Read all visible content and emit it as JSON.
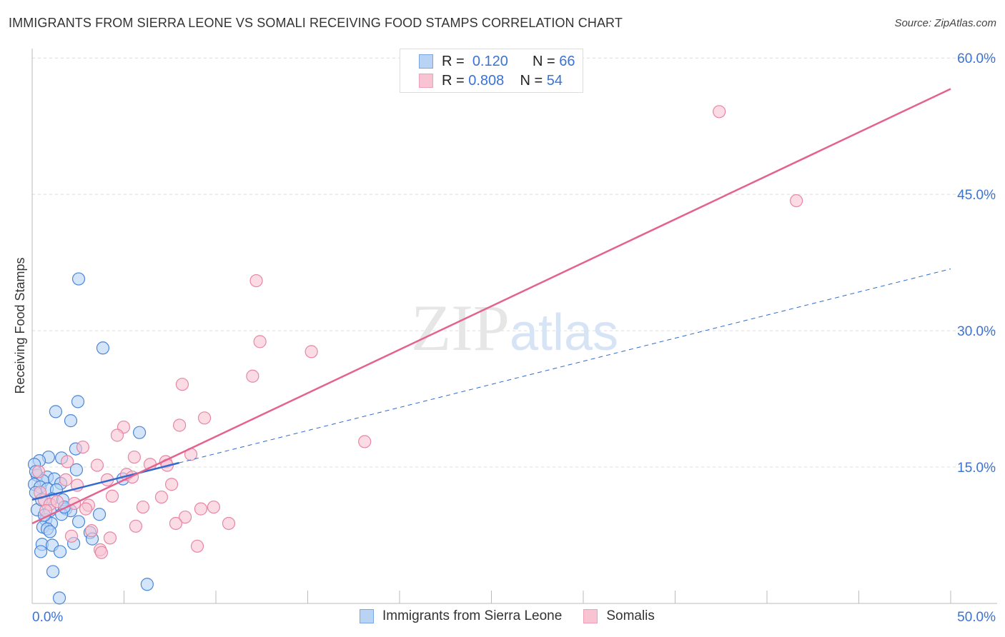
{
  "title": "IMMIGRANTS FROM SIERRA LEONE VS SOMALI RECEIVING FOOD STAMPS CORRELATION CHART",
  "source": "Source: ZipAtlas.com",
  "watermark": "ZIPatlas",
  "legend_box": [
    {
      "r_label": "R =",
      "r_value": "0.120",
      "n_label": "N =",
      "n_value": "66"
    },
    {
      "r_label": "R =",
      "r_value": "0.808",
      "n_label": "N =",
      "n_value": "54"
    }
  ],
  "colors": {
    "blue_fill": "#b9d3f5",
    "blue_stroke": "#4a86d8",
    "blue_line": "#2f6ad0",
    "pink_fill": "#f8c3d2",
    "pink_stroke": "#e886a5",
    "pink_line": "#e4628f",
    "axis_label": "#3a73d6"
  },
  "chart_data": {
    "type": "scatter",
    "title": "IMMIGRANTS FROM SIERRA LEONE VS SOMALI RECEIVING FOOD STAMPS CORRELATION CHART",
    "xlabel": "",
    "ylabel": "Receiving Food Stamps",
    "xlim": [
      0,
      50
    ],
    "ylim": [
      0,
      63
    ],
    "x_tick_labels": [
      "0.0%",
      "50.0%"
    ],
    "y_ticks": [
      15,
      30,
      45,
      60
    ],
    "y_tick_labels": [
      "15.0%",
      "30.0%",
      "45.0%",
      "60.0%"
    ],
    "grid": true,
    "legend_position": "bottom",
    "series": [
      {
        "name": "Immigrants from Sierra Leone",
        "r": 0.12,
        "n": 66,
        "trend": {
          "x0": 0,
          "y0": 11.4,
          "x_solid_end": 8,
          "x1": 50,
          "y1": 36.8
        },
        "points": [
          [
            2.53,
            35.7
          ],
          [
            3.85,
            28.1
          ],
          [
            1.28,
            21.1
          ],
          [
            2.49,
            22.2
          ],
          [
            2.1,
            20.1
          ],
          [
            5.84,
            18.8
          ],
          [
            2.37,
            17.0
          ],
          [
            0.89,
            16.1
          ],
          [
            1.6,
            16.0
          ],
          [
            0.39,
            15.7
          ],
          [
            0.12,
            15.3
          ],
          [
            2.41,
            14.7
          ],
          [
            0.27,
            14.1
          ],
          [
            0.82,
            13.9
          ],
          [
            1.21,
            13.7
          ],
          [
            0.58,
            13.5
          ],
          [
            1.56,
            13.2
          ],
          [
            0.12,
            13.1
          ],
          [
            4.94,
            13.7
          ],
          [
            0.43,
            12.8
          ],
          [
            0.82,
            12.6
          ],
          [
            1.32,
            12.5
          ],
          [
            0.19,
            12.2
          ],
          [
            1.09,
            11.5
          ],
          [
            1.67,
            11.4
          ],
          [
            0.27,
            10.3
          ],
          [
            0.97,
            10.2
          ],
          [
            1.83,
            10.4
          ],
          [
            2.1,
            10.2
          ],
          [
            1.6,
            9.8
          ],
          [
            3.66,
            9.8
          ],
          [
            0.74,
            9.2
          ],
          [
            1.05,
            8.8
          ],
          [
            2.53,
            9.0
          ],
          [
            0.58,
            8.4
          ],
          [
            0.82,
            8.2
          ],
          [
            3.15,
            7.8
          ],
          [
            0.97,
            7.9
          ],
          [
            3.27,
            7.1
          ],
          [
            0.54,
            6.5
          ],
          [
            1.09,
            6.4
          ],
          [
            2.26,
            6.6
          ],
          [
            0.47,
            5.7
          ],
          [
            1.52,
            5.7
          ],
          [
            1.13,
            3.5
          ],
          [
            6.26,
            2.1
          ],
          [
            1.48,
            0.6
          ],
          [
            0.19,
            14.5
          ],
          [
            0.51,
            11.4
          ],
          [
            0.66,
            9.7
          ],
          [
            1.75,
            10.6
          ]
        ]
      },
      {
        "name": "Somalis",
        "r": 0.808,
        "n": 54,
        "trend": {
          "x0": 0,
          "y0": 8.8,
          "x1": 50,
          "y1": 56.6
        },
        "points": [
          [
            37.4,
            54.1
          ],
          [
            41.6,
            44.3
          ],
          [
            12.2,
            35.5
          ],
          [
            12.4,
            28.8
          ],
          [
            15.2,
            27.7
          ],
          [
            12.0,
            25.0
          ],
          [
            8.17,
            24.1
          ],
          [
            9.38,
            20.4
          ],
          [
            4.98,
            19.4
          ],
          [
            8.02,
            19.6
          ],
          [
            4.63,
            18.5
          ],
          [
            18.1,
            17.8
          ],
          [
            2.76,
            17.2
          ],
          [
            8.64,
            16.4
          ],
          [
            5.56,
            16.1
          ],
          [
            1.91,
            15.6
          ],
          [
            7.27,
            15.6
          ],
          [
            6.42,
            15.3
          ],
          [
            3.54,
            15.2
          ],
          [
            7.35,
            15.2
          ],
          [
            5.14,
            14.2
          ],
          [
            4.09,
            13.6
          ],
          [
            5.45,
            13.9
          ],
          [
            7.59,
            13.1
          ],
          [
            2.45,
            13.0
          ],
          [
            1.83,
            13.6
          ],
          [
            4.36,
            11.8
          ],
          [
            7.04,
            11.7
          ],
          [
            2.3,
            11.0
          ],
          [
            3.07,
            10.8
          ],
          [
            2.92,
            10.4
          ],
          [
            6.03,
            10.6
          ],
          [
            9.18,
            10.4
          ],
          [
            9.88,
            10.6
          ],
          [
            8.33,
            9.5
          ],
          [
            7.82,
            8.8
          ],
          [
            10.7,
            8.8
          ],
          [
            5.64,
            8.5
          ],
          [
            2.14,
            7.4
          ],
          [
            3.23,
            8.0
          ],
          [
            4.24,
            7.2
          ],
          [
            8.99,
            6.3
          ],
          [
            3.7,
            5.9
          ],
          [
            3.77,
            5.6
          ],
          [
            0.66,
            11.4
          ],
          [
            0.97,
            10.9
          ],
          [
            1.36,
            11.2
          ],
          [
            0.43,
            12.2
          ],
          [
            0.74,
            10.2
          ],
          [
            0.35,
            14.5
          ]
        ]
      }
    ]
  }
}
